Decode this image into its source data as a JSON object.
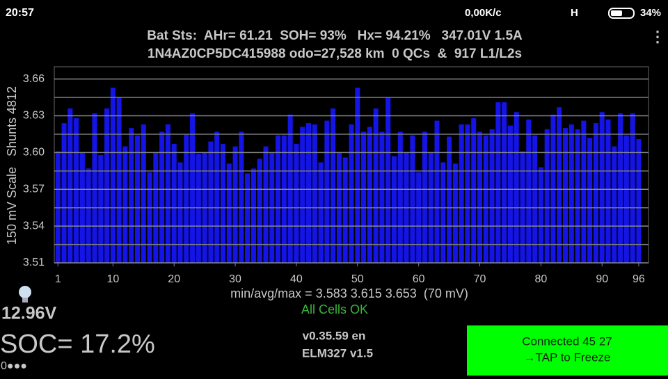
{
  "status_bar": {
    "time": "20:57",
    "speed": "0,00K/c",
    "network": "H",
    "battery": "34%"
  },
  "header": {
    "line1": "Bat Sts:  AHr= 61.21  SOH= 93%   Hx= 94.21%   347.01V 1.5A",
    "line2": "1N4AZ0CP5DC415988 odo=27,528 km  0 QCs  &  917 L1/L2s"
  },
  "chart_data": {
    "type": "bar",
    "y_label": "150 mV Scale   Shunts 4812",
    "color": "#1414e6",
    "x": [
      1,
      2,
      3,
      4,
      5,
      6,
      7,
      8,
      9,
      10,
      11,
      12,
      13,
      14,
      15,
      16,
      17,
      18,
      19,
      20,
      21,
      22,
      23,
      24,
      25,
      26,
      27,
      28,
      29,
      30,
      31,
      32,
      33,
      34,
      35,
      36,
      37,
      38,
      39,
      40,
      41,
      42,
      43,
      44,
      45,
      46,
      47,
      48,
      49,
      50,
      51,
      52,
      53,
      54,
      55,
      56,
      57,
      58,
      59,
      60,
      61,
      62,
      63,
      64,
      65,
      66,
      67,
      68,
      69,
      70,
      71,
      72,
      73,
      74,
      75,
      76,
      77,
      78,
      79,
      80,
      81,
      82,
      83,
      84,
      85,
      86,
      87,
      88,
      89,
      90,
      91,
      92,
      93,
      94,
      95,
      96
    ],
    "values": [
      3.601,
      3.624,
      3.636,
      3.628,
      3.6,
      3.587,
      3.632,
      3.598,
      3.636,
      3.653,
      3.645,
      3.605,
      3.62,
      3.614,
      3.623,
      3.584,
      3.6,
      3.617,
      3.623,
      3.607,
      3.592,
      3.615,
      3.632,
      3.599,
      3.6,
      3.609,
      3.617,
      3.607,
      3.591,
      3.605,
      3.617,
      3.583,
      3.587,
      3.595,
      3.605,
      3.6,
      3.614,
      3.614,
      3.631,
      3.607,
      3.621,
      3.624,
      3.623,
      3.592,
      3.626,
      3.636,
      3.6,
      3.596,
      3.623,
      3.653,
      3.617,
      3.621,
      3.636,
      3.617,
      3.645,
      3.597,
      3.617,
      3.6,
      3.614,
      3.584,
      3.617,
      3.6,
      3.626,
      3.592,
      3.613,
      3.591,
      3.623,
      3.623,
      3.628,
      3.617,
      3.614,
      3.619,
      3.641,
      3.641,
      3.622,
      3.633,
      3.601,
      3.627,
      3.614,
      3.588,
      3.619,
      3.631,
      3.637,
      3.62,
      3.623,
      3.619,
      3.626,
      3.612,
      3.624,
      3.633,
      3.627,
      3.605,
      3.632,
      3.614,
      3.632,
      3.611
    ],
    "xlim": [
      0.4,
      97.6
    ],
    "xticks": [
      1,
      10,
      20,
      30,
      40,
      50,
      60,
      70,
      80,
      90,
      96
    ],
    "ylim": [
      3.51,
      3.67
    ],
    "yticks": [
      3.51,
      3.54,
      3.57,
      {
        "value": 3.6,
        "label": "3.60"
      },
      3.63,
      3.66
    ],
    "y_minor_ticks": [
      3.525,
      3.555,
      3.585,
      3.615,
      3.645
    ],
    "grid": true
  },
  "stats": {
    "summary": "min/avg/max = 3.583 3.615 3.653  (70 mV)",
    "cells_status": "All Cells OK"
  },
  "footer": {
    "voltage": "12.96V",
    "soc": "SOC= 17.2%",
    "dots": "0●●●",
    "version": "v0.35.59 en",
    "adapter": "ELM327 v1.5",
    "button_line1": "Connected 45 27",
    "button_line2": "→TAP to Freeze"
  }
}
